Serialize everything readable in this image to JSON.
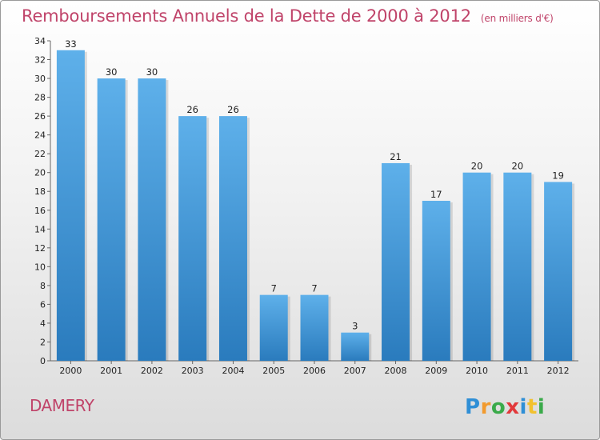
{
  "header": {
    "title": "Remboursements Annuels de la Dette de 2000 à 2012",
    "unit": "(en milliers d'€)"
  },
  "footer": {
    "commune": "DAMERY",
    "logo_text": "Proxiti"
  },
  "colors": {
    "bar_top": "#5eb0ea",
    "bar_bottom": "#2a7bbd",
    "title": "#c0446a"
  },
  "chart_data": {
    "type": "bar",
    "title": "Remboursements Annuels de la Dette de 2000 à 2012",
    "subtitle": "(en milliers d'€)",
    "xlabel": "",
    "ylabel": "",
    "categories": [
      "2000",
      "2001",
      "2002",
      "2003",
      "2004",
      "2005",
      "2006",
      "2007",
      "2008",
      "2009",
      "2010",
      "2011",
      "2012"
    ],
    "values": [
      33,
      30,
      30,
      26,
      26,
      7,
      7,
      3,
      21,
      17,
      20,
      20,
      19
    ],
    "ylim": [
      0,
      34
    ],
    "yticks": [
      0,
      2,
      4,
      6,
      8,
      10,
      12,
      14,
      16,
      18,
      20,
      22,
      24,
      26,
      28,
      30,
      32,
      34
    ],
    "grid": false,
    "legend": "none"
  }
}
